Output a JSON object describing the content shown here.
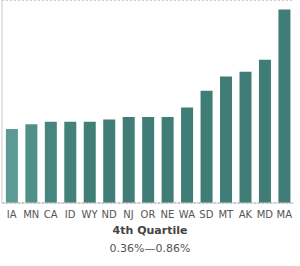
{
  "chart_data": {
    "type": "bar",
    "title": "4th Quartile",
    "subtitle": "0.36%—0.86%",
    "categories": [
      "IA",
      "MN",
      "CA",
      "ID",
      "WY",
      "ND",
      "NJ",
      "OR",
      "NE",
      "WA",
      "SD",
      "MT",
      "AK",
      "MD",
      "MA"
    ],
    "values": [
      0.36,
      0.38,
      0.39,
      0.39,
      0.39,
      0.4,
      0.41,
      0.41,
      0.41,
      0.45,
      0.52,
      0.58,
      0.6,
      0.65,
      0.86
    ],
    "colors": [
      "#5c9b93",
      "#4f9088",
      "#46867f",
      "#42827b",
      "#407f78",
      "#3f7d76",
      "#3f7d76",
      "#3f7d76",
      "#3f7d76",
      "#3f7d76",
      "#3f7d76",
      "#3f7d76",
      "#3f7d76",
      "#3f7d76",
      "#3f7d76"
    ],
    "ylim": [
      0.05,
      0.9
    ],
    "yticks": [
      0.3,
      0.5
    ],
    "grid": true,
    "tick_labels": "x"
  }
}
